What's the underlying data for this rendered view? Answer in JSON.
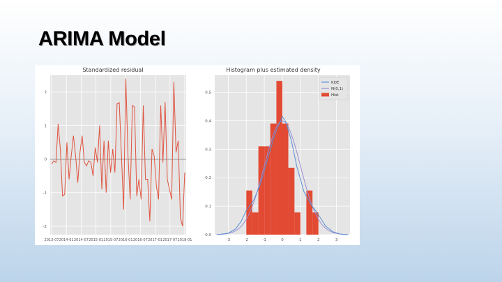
{
  "slide": {
    "title": "ARIMA Model"
  },
  "chart_data": [
    {
      "type": "line",
      "title": "Standardized residual",
      "xlabel": "",
      "ylabel": "",
      "x_ticks": [
        "2013-07",
        "2014-01",
        "2014-07",
        "2015-01",
        "2015-07",
        "2016-01",
        "2016-07",
        "2017-01",
        "2017-07",
        "2018-01"
      ],
      "y_ticks": [
        -2,
        -1,
        0,
        1,
        2
      ],
      "ylim": [
        -2.25,
        2.5
      ],
      "grid": true,
      "reference_line": 0,
      "series": [
        {
          "color": "#e0533f",
          "values": [
            -0.15,
            -0.05,
            -0.1,
            1.05,
            0.3,
            -1.1,
            -1.05,
            0.5,
            -0.6,
            0.1,
            0.7,
            0.1,
            -0.7,
            0.2,
            0.7,
            -0.1,
            -0.2,
            -0.05,
            -0.1,
            -0.5,
            0.35,
            -0.1,
            1.0,
            -0.9,
            0.55,
            -1.0,
            0.55,
            -0.4,
            0.3,
            -0.4,
            1.65,
            1.68,
            0.1,
            -1.5,
            2.4,
            0.1,
            -1.2,
            1.6,
            1.55,
            -1.1,
            -0.6,
            -1.2,
            1.6,
            -0.6,
            -0.6,
            -1.85,
            0.3,
            0.1,
            -0.8,
            -1.2,
            1.6,
            -0.1,
            1.7,
            -0.6,
            -0.9,
            -1.2,
            2.3,
            0.2,
            0.55,
            -1.75,
            -2.0,
            -0.4
          ]
        }
      ]
    },
    {
      "type": "bar",
      "title": "Histogram plus estimated density",
      "xlabel": "",
      "ylabel": "",
      "x_ticks": [
        -3,
        -2,
        -1,
        0,
        1,
        2,
        3
      ],
      "y_ticks": [
        0.0,
        0.1,
        0.2,
        0.3,
        0.4,
        0.5
      ],
      "xlim": [
        -3.75,
        3.75
      ],
      "ylim": [
        0,
        0.56
      ],
      "grid": true,
      "legend": {
        "position": "top-right",
        "entries": [
          "KDE",
          "N(0,1)",
          "Hist"
        ]
      },
      "hist": {
        "name": "Hist",
        "color": "#e24a33",
        "bin_edges": [
          -2.0,
          -1.67,
          -1.33,
          -1.0,
          -0.67,
          -0.33,
          0.0,
          0.33,
          0.67,
          1.0,
          1.33,
          1.67,
          2.0,
          2.33
        ],
        "heights": [
          0.155,
          0.078,
          0.31,
          0.31,
          0.39,
          0.54,
          0.39,
          0.235,
          0.078,
          0.0,
          0.155,
          0.078,
          0.0
        ]
      },
      "kde": {
        "name": "KDE",
        "color": "#5b8fd2",
        "x": [
          -3.6,
          -3.0,
          -2.6,
          -2.3,
          -2.0,
          -1.6,
          -1.2,
          -0.8,
          -0.4,
          -0.1,
          0.0,
          0.2,
          0.5,
          0.8,
          1.2,
          1.6,
          2.0,
          2.4,
          2.8,
          3.2,
          3.6
        ],
        "y": [
          0.0,
          0.005,
          0.02,
          0.045,
          0.085,
          0.12,
          0.18,
          0.27,
          0.355,
          0.4,
          0.415,
          0.395,
          0.33,
          0.24,
          0.15,
          0.105,
          0.07,
          0.03,
          0.01,
          0.002,
          0.0
        ]
      },
      "normal": {
        "name": "N(0,1)",
        "color": "#988ed5",
        "mean": 0,
        "std": 1
      }
    }
  ]
}
